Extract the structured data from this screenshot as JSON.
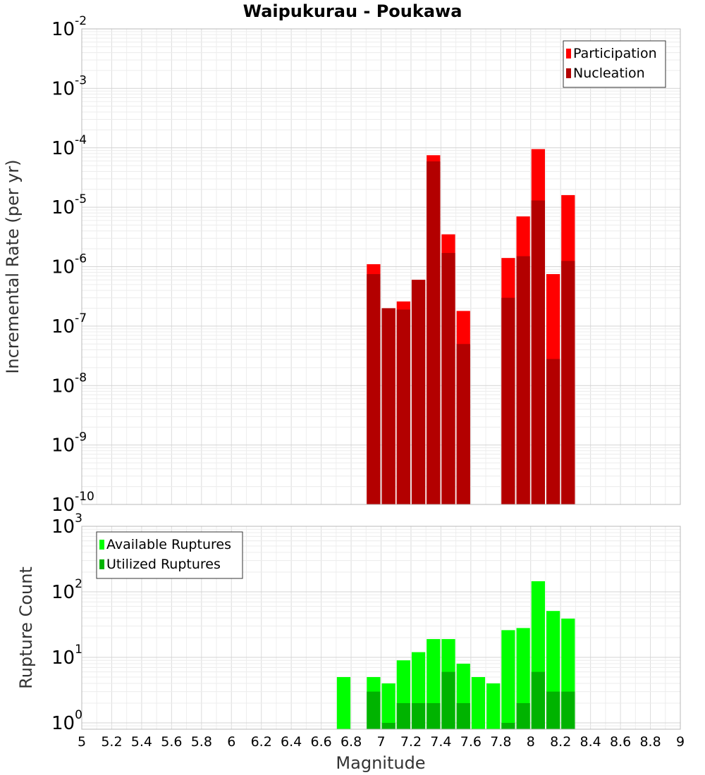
{
  "chart_data": {
    "title": "Waipukurau - Poukawa",
    "xlabel": "Magnitude",
    "xlim": [
      5,
      9
    ],
    "xticks": [
      "5",
      "5.2",
      "5.4",
      "5.6",
      "5.8",
      "6",
      "6.2",
      "6.4",
      "6.6",
      "6.8",
      "7",
      "7.2",
      "7.4",
      "7.6",
      "7.8",
      "8",
      "8.2",
      "8.4",
      "8.6",
      "8.8",
      "9"
    ],
    "bin_width": 0.1,
    "panels": [
      {
        "type": "bar",
        "ylabel": "Incremental Rate (per yr)",
        "yscale": "log",
        "ylim": [
          1e-10,
          0.01
        ],
        "yticks": [
          {
            "base": "10",
            "exp": "-10"
          },
          {
            "base": "10",
            "exp": "-9"
          },
          {
            "base": "10",
            "exp": "-8"
          },
          {
            "base": "10",
            "exp": "-7"
          },
          {
            "base": "10",
            "exp": "-6"
          },
          {
            "base": "10",
            "exp": "-5"
          },
          {
            "base": "10",
            "exp": "-4"
          },
          {
            "base": "10",
            "exp": "-3"
          },
          {
            "base": "10",
            "exp": "-2"
          }
        ],
        "legend_position": "top-right",
        "series": [
          {
            "name": "Participation",
            "color": "#ff0000",
            "x": [
              6.95,
              7.05,
              7.15,
              7.25,
              7.35,
              7.45,
              7.55,
              7.85,
              7.95,
              8.05,
              8.15,
              8.25
            ],
            "values": [
              1.1e-06,
              2e-07,
              2.6e-07,
              6e-07,
              7.5e-05,
              3.5e-06,
              1.8e-07,
              1.4e-06,
              7e-06,
              9.5e-05,
              7.5e-07,
              1.6e-05
            ]
          },
          {
            "name": "Nucleation",
            "color": "#b30000",
            "x": [
              6.95,
              7.05,
              7.15,
              7.25,
              7.35,
              7.45,
              7.55,
              7.85,
              7.95,
              8.05,
              8.15,
              8.25
            ],
            "values": [
              7.5e-07,
              2e-07,
              1.9e-07,
              6e-07,
              5.9e-05,
              1.7e-06,
              5e-08,
              3e-07,
              1.5e-06,
              1.3e-05,
              2.8e-08,
              1.25e-06
            ]
          }
        ]
      },
      {
        "type": "bar",
        "ylabel": "Rupture Count",
        "yscale": "log",
        "ylim": [
          0.8,
          1000
        ],
        "yticks": [
          {
            "base": "10",
            "exp": "0"
          },
          {
            "base": "10",
            "exp": "1"
          },
          {
            "base": "10",
            "exp": "2"
          },
          {
            "base": "10",
            "exp": "3"
          }
        ],
        "legend_position": "top-left",
        "series": [
          {
            "name": "Available Ruptures",
            "color": "#00ff00",
            "x": [
              6.75,
              6.95,
              7.05,
              7.15,
              7.25,
              7.35,
              7.45,
              7.55,
              7.65,
              7.75,
              7.85,
              7.95,
              8.05,
              8.15,
              8.25
            ],
            "values": [
              5,
              5,
              4,
              9,
              12,
              19,
              19,
              8,
              5,
              4,
              26,
              28,
              145,
              51,
              39
            ]
          },
          {
            "name": "Utilized Ruptures",
            "color": "#00b300",
            "x": [
              6.95,
              7.05,
              7.15,
              7.25,
              7.35,
              7.45,
              7.55,
              7.85,
              7.95,
              8.05,
              8.15,
              8.25
            ],
            "values": [
              3,
              1,
              2,
              2,
              2,
              6,
              2,
              1,
              2,
              6,
              3,
              3
            ]
          }
        ]
      }
    ]
  }
}
